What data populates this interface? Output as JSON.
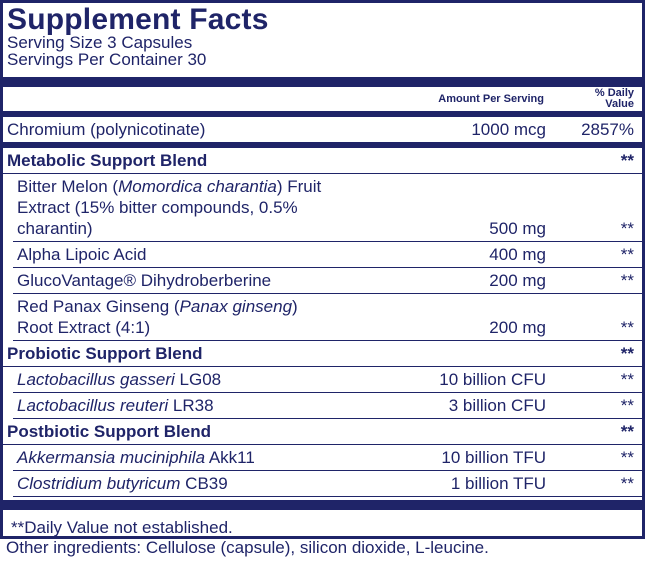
{
  "header": {
    "title": "Supplement Facts",
    "serving_size": "Serving Size 3 Capsules",
    "servings_per_container": "Servings Per Container 30"
  },
  "table": {
    "columns": {
      "amount": "Amount Per Serving",
      "daily_value": "% Daily Value"
    },
    "rows": [
      {
        "kind": "nutrient",
        "name_lines": [
          [
            {
              "text": "Chromium (polynicotinate)"
            }
          ]
        ],
        "amount": "1000 mcg",
        "dv": "2857%"
      },
      {
        "kind": "blend",
        "name_lines": [
          [
            {
              "text": "Metabolic Support Blend"
            }
          ]
        ],
        "amount": "",
        "dv": "**"
      },
      {
        "kind": "ingredient",
        "name_lines": [
          [
            {
              "text": "Bitter Melon ("
            },
            {
              "text": "Momordica charantia",
              "italic": true
            },
            {
              "text": ") Fruit"
            }
          ],
          [
            {
              "text": "Extract (15% bitter compounds, 0.5% charantin)"
            }
          ]
        ],
        "amount": "500 mg",
        "dv": "**"
      },
      {
        "kind": "ingredient",
        "name_lines": [
          [
            {
              "text": "Alpha Lipoic Acid"
            }
          ]
        ],
        "amount": "400 mg",
        "dv": "**"
      },
      {
        "kind": "ingredient",
        "name_lines": [
          [
            {
              "text": "GlucoVantage® Dihydroberberine"
            }
          ]
        ],
        "amount": "200 mg",
        "dv": "**"
      },
      {
        "kind": "ingredient",
        "name_lines": [
          [
            {
              "text": "Red Panax Ginseng ("
            },
            {
              "text": "Panax ginseng",
              "italic": true
            },
            {
              "text": ")"
            }
          ],
          [
            {
              "text": "Root Extract (4:1)"
            }
          ]
        ],
        "amount": "200 mg",
        "dv": "**"
      },
      {
        "kind": "blend",
        "name_lines": [
          [
            {
              "text": "Probiotic Support Blend"
            }
          ]
        ],
        "amount": "",
        "dv": "**"
      },
      {
        "kind": "ingredient",
        "name_lines": [
          [
            {
              "text": "Lactobacillus gasseri",
              "italic": true
            },
            {
              "text": " LG08"
            }
          ]
        ],
        "amount": "10 billion CFU",
        "dv": "**"
      },
      {
        "kind": "ingredient",
        "name_lines": [
          [
            {
              "text": "Lactobacillus reuteri",
              "italic": true
            },
            {
              "text": " LR38"
            }
          ]
        ],
        "amount": "3 billion CFU",
        "dv": "**"
      },
      {
        "kind": "blend",
        "name_lines": [
          [
            {
              "text": "Postbiotic Support Blend"
            }
          ]
        ],
        "amount": "",
        "dv": "**"
      },
      {
        "kind": "ingredient",
        "name_lines": [
          [
            {
              "text": "Akkermansia muciniphila",
              "italic": true
            },
            {
              "text": " Akk11"
            }
          ]
        ],
        "amount": "10 billion TFU",
        "dv": "**"
      },
      {
        "kind": "ingredient",
        "name_lines": [
          [
            {
              "text": "Clostridium butyricum",
              "italic": true
            },
            {
              "text": " CB39"
            }
          ]
        ],
        "amount": "1 billion TFU",
        "dv": "**"
      }
    ],
    "footnote": "**Daily Value not established."
  },
  "other_ingredients": "Other ingredients: Cellulose (capsule), silicon dioxide, L-leucine."
}
